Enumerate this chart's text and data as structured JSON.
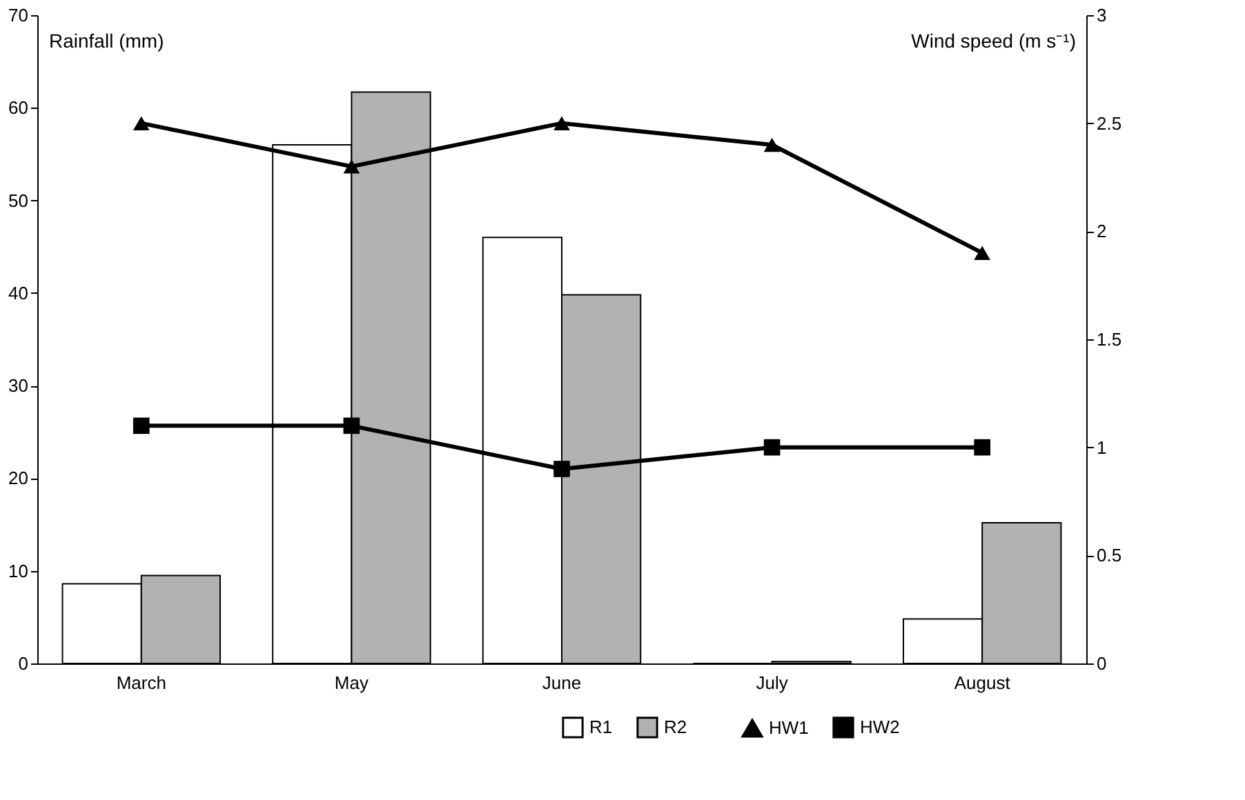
{
  "chart_data": {
    "type": "bar",
    "categories": [
      "March",
      "May",
      "June",
      "July",
      "August"
    ],
    "ylabel": "Rainfall (mm)",
    "y2label": "Wind speed (m s⁻¹)",
    "ylim": [
      0,
      70
    ],
    "yticks": [
      0,
      10,
      20,
      30,
      40,
      50,
      60,
      70
    ],
    "y2lim": [
      0,
      3
    ],
    "y2ticks": [
      0,
      0.5,
      1,
      1.5,
      2,
      2.5,
      3
    ],
    "grid": false,
    "legend": "bottom right",
    "series": [
      {
        "name": "R1",
        "color": "#ffffff",
        "values": [
          8.6,
          56,
          46,
          0,
          4.8
        ]
      },
      {
        "name": "R2",
        "color": "#b2b2b2",
        "values": [
          9.5,
          61.7,
          39.8,
          0.2,
          15.2
        ]
      },
      {
        "name": "HW1",
        "type": "line",
        "axis": "y2",
        "marker": "triangle",
        "color": "#000000",
        "values": [
          2.5,
          2.3,
          2.5,
          2.4,
          1.9
        ]
      },
      {
        "name": "HW2",
        "type": "line",
        "axis": "y2",
        "marker": "square",
        "color": "#000000",
        "values": [
          1.1,
          1.1,
          0.9,
          1.0,
          1.0
        ]
      }
    ]
  }
}
